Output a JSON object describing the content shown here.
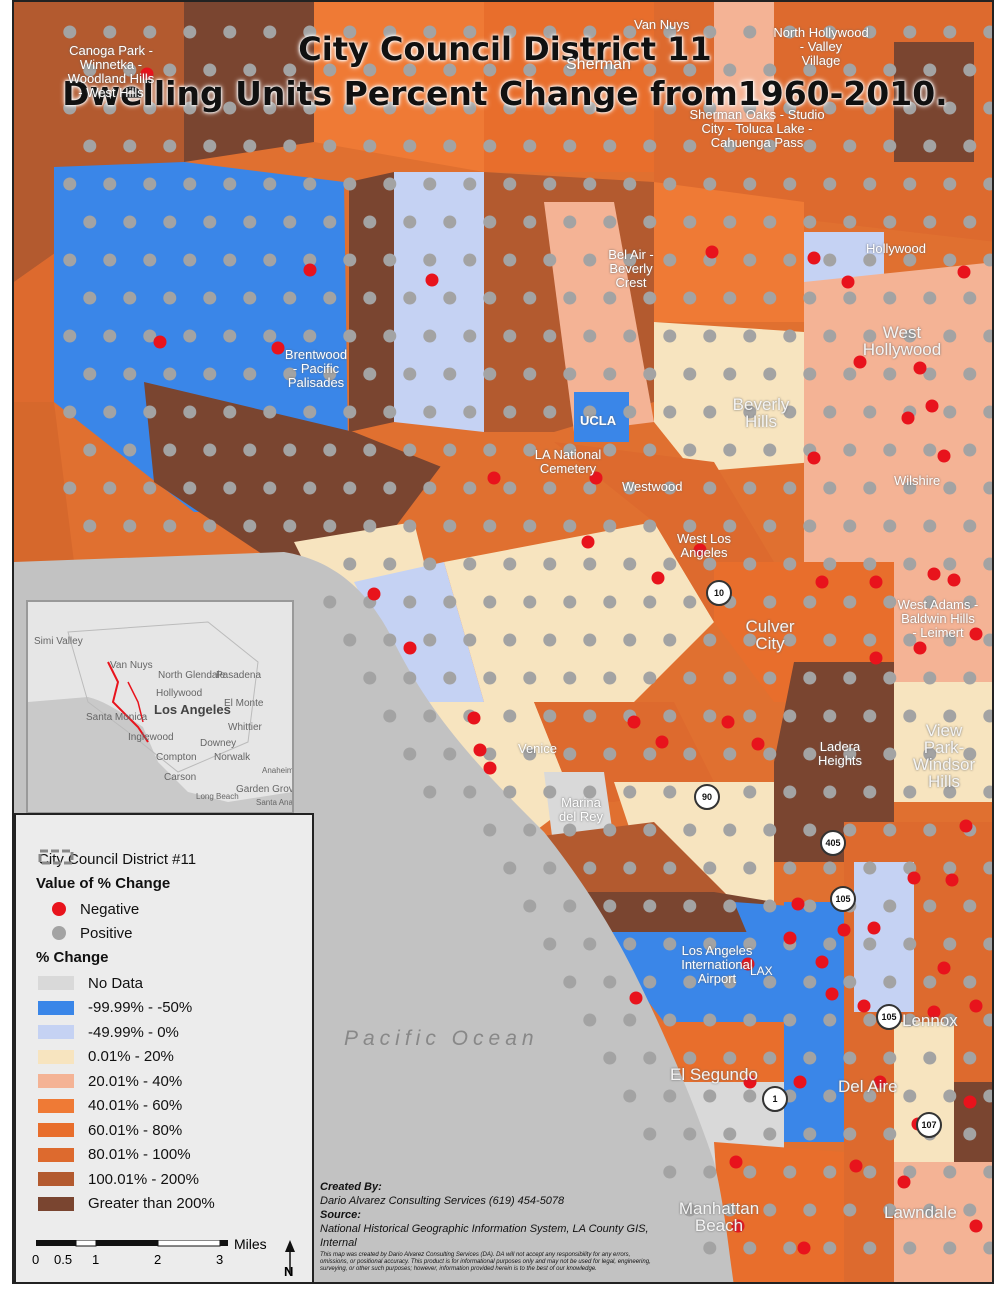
{
  "title": {
    "line1": "City Council District 11",
    "line2": "Dwelling Units Percent Change  from1960-2010."
  },
  "map": {
    "ocean_label": "Pacific Ocean",
    "places": {
      "canoga_park": "Canoga Park -\nWinnetka -\nWoodland Hills\n- West Hills",
      "van_nuys": "Van Nuys",
      "sherman": "Sherman",
      "north_hollywood": "North Hollywood\n- Valley\nVillage",
      "sherman_oaks": "Sherman Oaks - Studio\nCity - Toluca Lake -\nCahuenga Pass",
      "bel_air": "Bel Air -\nBeverly\nCrest",
      "hollywood": "Hollywood",
      "west_hollywood": "West\nHollywood",
      "brentwood": "Brentwood\n- Pacific\nPalisades",
      "beverly_hills": "Beverly\nHills",
      "ucla": "UCLA",
      "la_national_cemetery": "LA National\nCemetery",
      "westwood": "Westwood",
      "wilshire": "Wilshire",
      "west_la": "West Los\nAngeles",
      "west_adams": "West Adams -\nBaldwin Hills\n- Leimert",
      "culver_city": "Culver\nCity",
      "view_park": "View\nPark-Windsor\nHills",
      "ladera_heights": "Ladera\nHeights",
      "venice": "Venice",
      "marina_del_rey": "Marina\ndel Rey",
      "lax": "Los Angeles\nInternational\nAirport",
      "lax_code": "LAX",
      "lennox": "Lennox",
      "el_segundo": "El Segundo",
      "del_aire": "Del Aire",
      "manhattan_beach": "Manhattan\nBeach",
      "lawndale": "Lawndale"
    },
    "highway_shields": [
      "10",
      "90",
      "405",
      "105",
      "105",
      "1",
      "107"
    ]
  },
  "inset": {
    "labels": [
      "Simi Valley",
      "Van Nuys",
      "North Glendale",
      "Pasadena",
      "Hollywood",
      "El Monte",
      "Santa Monica",
      "Los Angeles",
      "Whittier",
      "Inglewood",
      "Downey",
      "Compton",
      "Norwalk",
      "Carson",
      "Anaheim",
      "Garden Grove",
      "Long Beach",
      "Santa Ana"
    ]
  },
  "legend": {
    "district": "City Council District #11",
    "value_header": "Value of % Change",
    "negative": "Negative",
    "positive": "Positive",
    "change_header": "% Change",
    "classes": [
      {
        "label": "No Data",
        "color": "#d9d9d9"
      },
      {
        "label": "-99.99% - -50%",
        "color": "#3a86e8"
      },
      {
        "label": "-49.99% - 0%",
        "color": "#c5d2f3"
      },
      {
        "label": "0.01% - 20%",
        "color": "#f7e4bf"
      },
      {
        "label": "20.01% - 40%",
        "color": "#f4b395"
      },
      {
        "label": "40.01% - 60%",
        "color": "#ef7a35"
      },
      {
        "label": "60.01% - 80%",
        "color": "#e86e2c"
      },
      {
        "label": "80.01% - 100%",
        "color": "#dd6a2e"
      },
      {
        "label": "100.01% - 200%",
        "color": "#b35a2f"
      },
      {
        "label": "Greater than 200%",
        "color": "#7a4530"
      }
    ],
    "negative_color": "#e8131c",
    "positive_color": "#a3a3a3"
  },
  "scalebar": {
    "unit": "Miles",
    "ticks": [
      "0",
      "0.5",
      "1",
      "2",
      "3"
    ],
    "north": "N"
  },
  "credits": {
    "created_by_label": "Created By:",
    "created_by": "Dario Alvarez Consulting Services (619) 454-5078",
    "source_label": "Source:",
    "source": "National Historical Geographic Information System, LA County GIS,",
    "internal": "Internal",
    "disclaimer": "This map was created by Dario Alvarez Consulting Services (DA). DA will not accept any responsibility for any errors, omissions, or positional accuracy. This product is for informational purposes only and may not be used for legal, engineering, surveying, or other such purposes; however, information provided herein is to the best of our knowledge."
  }
}
